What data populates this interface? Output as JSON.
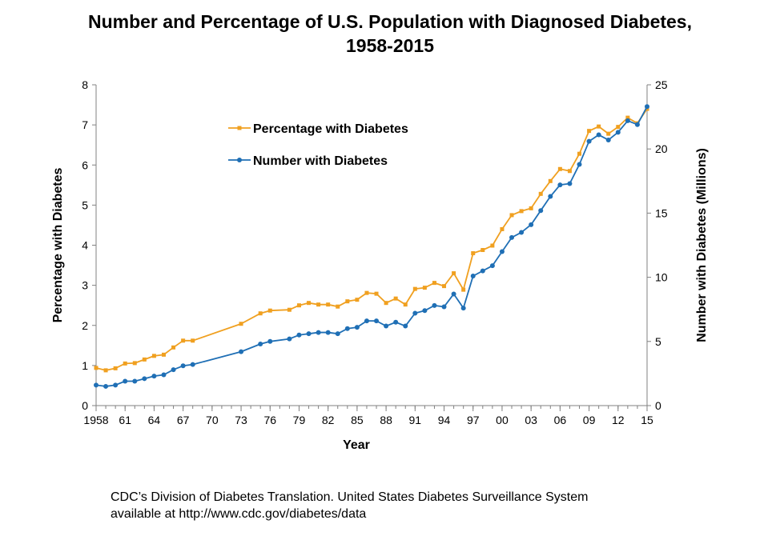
{
  "chart_data": {
    "type": "line",
    "title": "Number and Percentage of U.S. Population with Diagnosed Diabetes,",
    "title_line2": "1958-2015",
    "xlabel": "Year",
    "ylabel_left": "Percentage with Diabetes",
    "ylabel_right": "Number with Diabetes (Millions)",
    "ylim_left": [
      0,
      8
    ],
    "ylim_right": [
      0,
      25
    ],
    "xlim": [
      1958,
      2015
    ],
    "x_tick_labels": [
      {
        "year": 1958,
        "label": "1958"
      },
      {
        "year": 1961,
        "label": "61"
      },
      {
        "year": 1964,
        "label": "64"
      },
      {
        "year": 1967,
        "label": "67"
      },
      {
        "year": 1970,
        "label": "70"
      },
      {
        "year": 1973,
        "label": "73"
      },
      {
        "year": 1976,
        "label": "76"
      },
      {
        "year": 1979,
        "label": "79"
      },
      {
        "year": 1982,
        "label": "82"
      },
      {
        "year": 1985,
        "label": "85"
      },
      {
        "year": 1988,
        "label": "88"
      },
      {
        "year": 1991,
        "label": "91"
      },
      {
        "year": 1994,
        "label": "94"
      },
      {
        "year": 1997,
        "label": "97"
      },
      {
        "year": 2000,
        "label": "00"
      },
      {
        "year": 2003,
        "label": "03"
      },
      {
        "year": 2006,
        "label": "06"
      },
      {
        "year": 2009,
        "label": "09"
      },
      {
        "year": 2012,
        "label": "12"
      },
      {
        "year": 2015,
        "label": "15"
      }
    ],
    "y_left_ticks": [
      0,
      1,
      2,
      3,
      4,
      5,
      6,
      7,
      8
    ],
    "y_right_ticks": [
      0,
      5,
      10,
      15,
      20,
      25
    ],
    "grid": false,
    "legend_position": "upper-left",
    "series": [
      {
        "name": "Percentage with Diabetes",
        "axis": "left",
        "color": "#F0A020",
        "marker": "square",
        "points": [
          [
            1958,
            0.94
          ],
          [
            1959,
            0.88
          ],
          [
            1960,
            0.93
          ],
          [
            1961,
            1.05
          ],
          [
            1962,
            1.06
          ],
          [
            1963,
            1.15
          ],
          [
            1964,
            1.24
          ],
          [
            1965,
            1.27
          ],
          [
            1966,
            1.45
          ],
          [
            1967,
            1.62
          ],
          [
            1968,
            1.62
          ],
          [
            1973,
            2.04
          ],
          [
            1975,
            2.3
          ],
          [
            1976,
            2.37
          ],
          [
            1978,
            2.39
          ],
          [
            1979,
            2.5
          ],
          [
            1980,
            2.56
          ],
          [
            1981,
            2.52
          ],
          [
            1982,
            2.52
          ],
          [
            1983,
            2.47
          ],
          [
            1984,
            2.6
          ],
          [
            1985,
            2.64
          ],
          [
            1986,
            2.81
          ],
          [
            1987,
            2.79
          ],
          [
            1988,
            2.56
          ],
          [
            1989,
            2.67
          ],
          [
            1990,
            2.52
          ],
          [
            1991,
            2.91
          ],
          [
            1992,
            2.94
          ],
          [
            1993,
            3.06
          ],
          [
            1994,
            2.98
          ],
          [
            1995,
            3.3
          ],
          [
            1996,
            2.89
          ],
          [
            1997,
            3.8
          ],
          [
            1998,
            3.88
          ],
          [
            1999,
            3.99
          ],
          [
            2000,
            4.4
          ],
          [
            2001,
            4.75
          ],
          [
            2002,
            4.85
          ],
          [
            2003,
            4.92
          ],
          [
            2004,
            5.28
          ],
          [
            2005,
            5.6
          ],
          [
            2006,
            5.9
          ],
          [
            2007,
            5.85
          ],
          [
            2008,
            6.28
          ],
          [
            2009,
            6.85
          ],
          [
            2010,
            6.96
          ],
          [
            2011,
            6.78
          ],
          [
            2012,
            6.95
          ],
          [
            2013,
            7.18
          ],
          [
            2014,
            7.04
          ],
          [
            2015,
            7.4
          ]
        ]
      },
      {
        "name": "Number with Diabetes",
        "axis": "right",
        "color": "#1F6FB5",
        "marker": "circle",
        "points": [
          [
            1958,
            1.6
          ],
          [
            1959,
            1.5
          ],
          [
            1960,
            1.6
          ],
          [
            1961,
            1.9
          ],
          [
            1962,
            1.9
          ],
          [
            1963,
            2.1
          ],
          [
            1964,
            2.3
          ],
          [
            1965,
            2.4
          ],
          [
            1966,
            2.8
          ],
          [
            1967,
            3.1
          ],
          [
            1968,
            3.2
          ],
          [
            1973,
            4.2
          ],
          [
            1975,
            4.8
          ],
          [
            1976,
            5.0
          ],
          [
            1978,
            5.2
          ],
          [
            1979,
            5.5
          ],
          [
            1980,
            5.6
          ],
          [
            1981,
            5.7
          ],
          [
            1982,
            5.7
          ],
          [
            1983,
            5.6
          ],
          [
            1984,
            6.0
          ],
          [
            1985,
            6.1
          ],
          [
            1986,
            6.6
          ],
          [
            1987,
            6.6
          ],
          [
            1988,
            6.2
          ],
          [
            1989,
            6.5
          ],
          [
            1990,
            6.2
          ],
          [
            1991,
            7.2
          ],
          [
            1992,
            7.4
          ],
          [
            1993,
            7.8
          ],
          [
            1994,
            7.7
          ],
          [
            1995,
            8.7
          ],
          [
            1996,
            7.6
          ],
          [
            1997,
            10.1
          ],
          [
            1998,
            10.5
          ],
          [
            1999,
            10.9
          ],
          [
            2000,
            12.0
          ],
          [
            2001,
            13.1
          ],
          [
            2002,
            13.5
          ],
          [
            2003,
            14.1
          ],
          [
            2004,
            15.2
          ],
          [
            2005,
            16.3
          ],
          [
            2006,
            17.2
          ],
          [
            2007,
            17.3
          ],
          [
            2008,
            18.8
          ],
          [
            2009,
            20.6
          ],
          [
            2010,
            21.1
          ],
          [
            2011,
            20.7
          ],
          [
            2012,
            21.3
          ],
          [
            2013,
            22.2
          ],
          [
            2014,
            21.9
          ],
          [
            2015,
            23.3
          ]
        ]
      }
    ]
  },
  "source": {
    "line1": "CDC’s Division of Diabetes Translation. United States Diabetes Surveillance System",
    "line2": "available at http://www.cdc.gov/diabetes/data"
  }
}
